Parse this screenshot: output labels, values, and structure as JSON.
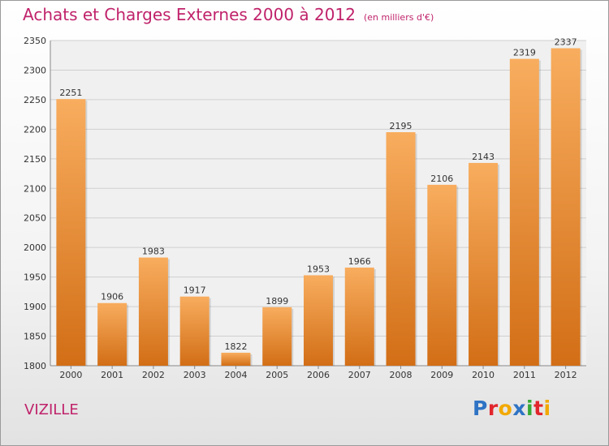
{
  "title": "Achats et Charges Externes 2000 à 2012",
  "unit_note": "(en milliers d'€)",
  "town": "VIZILLE",
  "logo": {
    "text": "Proxiti",
    "letters": [
      {
        "ch": "P",
        "color": "#2e73c4"
      },
      {
        "ch": "r",
        "color": "#e2262d"
      },
      {
        "ch": "o",
        "color": "#f2a900"
      },
      {
        "ch": "x",
        "color": "#2e73c4"
      },
      {
        "ch": "i",
        "color": "#37a935"
      },
      {
        "ch": "t",
        "color": "#e2262d"
      },
      {
        "ch": "i",
        "color": "#f2a900"
      }
    ]
  },
  "colors": {
    "title": "#c0236b",
    "bar_light": "#f8ad5e",
    "bar_dark": "#d26e16",
    "grid": "#cfcfcf"
  },
  "chart_data": {
    "type": "bar",
    "title": "Achats et Charges Externes 2000 à 2012",
    "categories": [
      "2000",
      "2001",
      "2002",
      "2003",
      "2004",
      "2005",
      "2006",
      "2007",
      "2008",
      "2009",
      "2010",
      "2011",
      "2012"
    ],
    "values": [
      2251,
      1906,
      1983,
      1917,
      1822,
      1899,
      1953,
      1966,
      2195,
      2106,
      2143,
      2319,
      2337
    ],
    "ylim": [
      1800,
      2350
    ],
    "yticks": [
      1800,
      1850,
      1900,
      1950,
      2000,
      2050,
      2100,
      2150,
      2200,
      2250,
      2300,
      2350
    ],
    "grid": true,
    "legend": "none"
  }
}
